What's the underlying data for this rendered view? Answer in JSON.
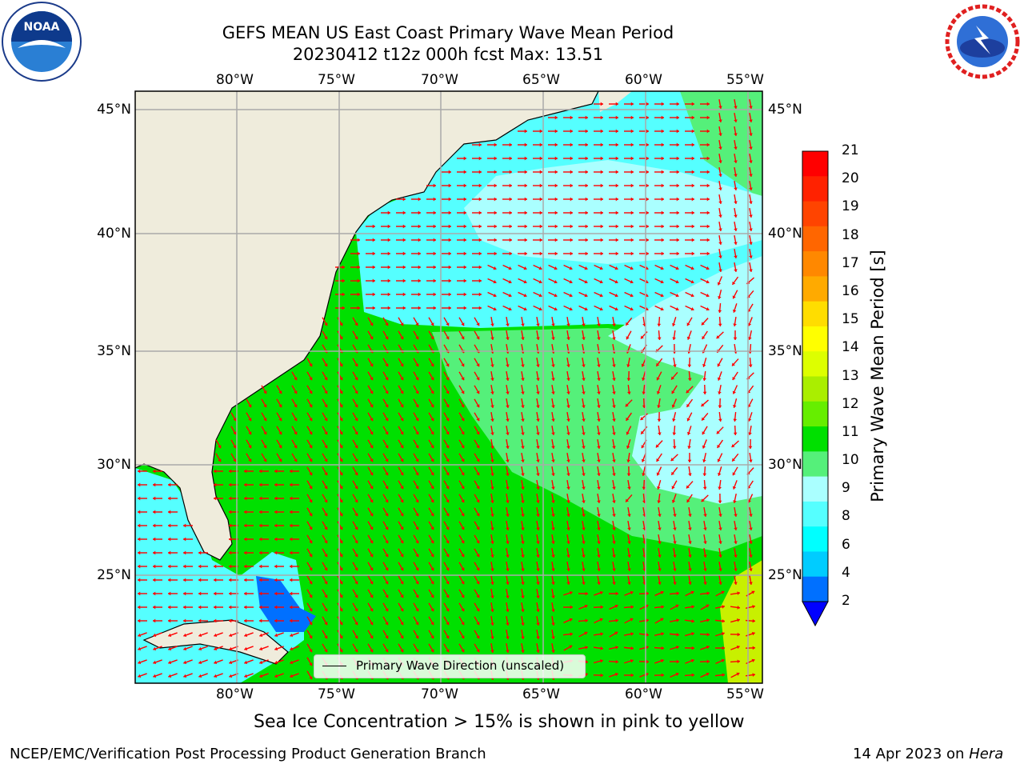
{
  "header": {
    "title_line1": "GEFS MEAN US East Coast Primary Wave Mean Period",
    "title_line2": "20230412 t12z 000h fcst   Max: 13.51",
    "noaa_logo": "NOAA",
    "nws_logo": "NATIONAL WEATHER SERVICE"
  },
  "map": {
    "lon_ticks": [
      "80°W",
      "75°W",
      "70°W",
      "65°W",
      "60°W",
      "55°W"
    ],
    "lat_ticks": [
      "45°N",
      "40°N",
      "35°N",
      "30°N",
      "25°N"
    ],
    "legend_label": "Primary Wave Direction (unscaled)",
    "colors": {
      "land": "#efecdc",
      "green": "#00e000",
      "light_green": "#55f07a",
      "cyan": "#55ffff",
      "light_cyan": "#aaffff",
      "blue": "#0070ff",
      "yellow_green": "#c8f000",
      "arrow": "#ff0000"
    }
  },
  "colorbar": {
    "label": "Primary Wave Mean Period [s]",
    "ticks": [
      "21",
      "20",
      "19",
      "18",
      "17",
      "16",
      "15",
      "14",
      "13",
      "12",
      "11",
      "10",
      "9",
      "8",
      "6",
      "4",
      "2"
    ],
    "colors": [
      "#ff0000",
      "#ff2200",
      "#ff4400",
      "#ff6600",
      "#ff8800",
      "#ffaa00",
      "#ffdd00",
      "#ffff00",
      "#ddff00",
      "#aaee00",
      "#66ee00",
      "#00e000",
      "#55f07a",
      "#aaffff",
      "#55ffff",
      "#00ffff",
      "#00ccff",
      "#0070ff"
    ]
  },
  "footer": {
    "note": "Sea Ice Concentration > 15% is shown in pink to yellow",
    "credit": "NCEP/EMC/Verification Post Processing Product Generation Branch",
    "date": "14 Apr 2023 on",
    "host": "Hera"
  }
}
